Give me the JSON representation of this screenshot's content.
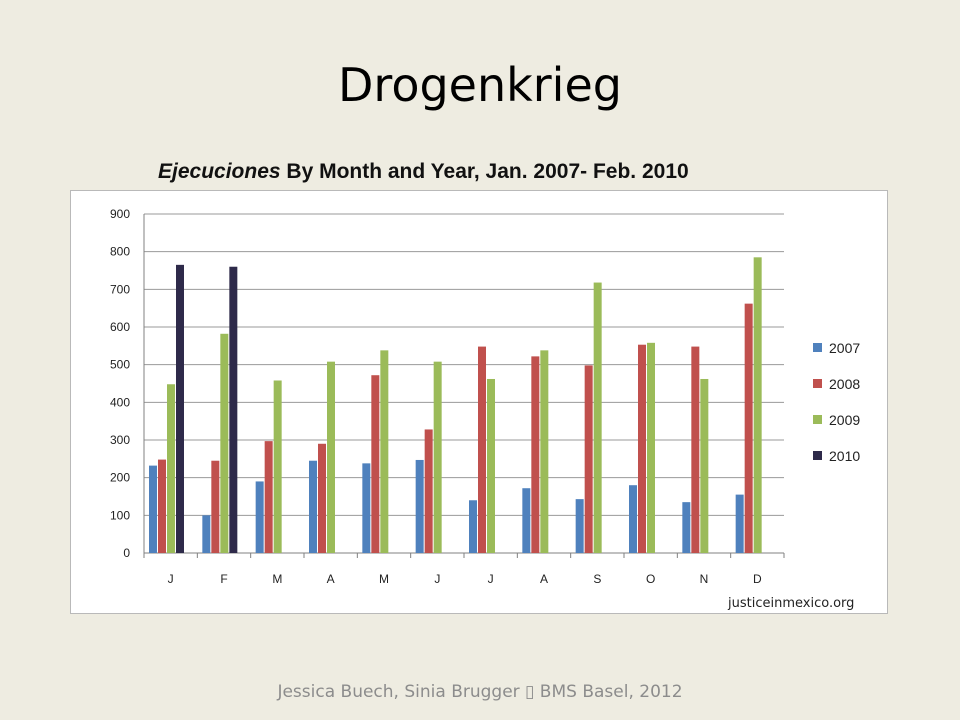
{
  "slide": {
    "title": "Drogenkrieg",
    "source": "justiceinmexico.org",
    "footer": "Jessica Buech, Sinia Brugger ▯ BMS Basel, 2012"
  },
  "chart_data": {
    "type": "bar",
    "title_em": "Ejecuciones",
    "title_rest": " By Month and Year, Jan. 2007- Feb. 2010",
    "categories": [
      "J",
      "F",
      "M",
      "A",
      "M",
      "J",
      "J",
      "A",
      "S",
      "O",
      "N",
      "D"
    ],
    "ylim": [
      0,
      900
    ],
    "yticks": [
      0,
      100,
      200,
      300,
      400,
      500,
      600,
      700,
      800,
      900
    ],
    "grid": true,
    "legend_position": "right",
    "series": [
      {
        "name": "2007",
        "color": "#4f81bd",
        "values": [
          232,
          100,
          190,
          245,
          238,
          247,
          140,
          172,
          143,
          180,
          135,
          155
        ]
      },
      {
        "name": "2008",
        "color": "#c0504d",
        "values": [
          248,
          245,
          297,
          290,
          472,
          328,
          548,
          522,
          498,
          553,
          548,
          662
        ]
      },
      {
        "name": "2009",
        "color": "#9bbb59",
        "values": [
          448,
          582,
          458,
          508,
          538,
          508,
          462,
          538,
          718,
          558,
          462,
          785
        ]
      },
      {
        "name": "2010",
        "color": "#2e2a4a",
        "values": [
          765,
          760,
          null,
          null,
          null,
          null,
          null,
          null,
          null,
          null,
          null,
          null
        ]
      }
    ]
  }
}
